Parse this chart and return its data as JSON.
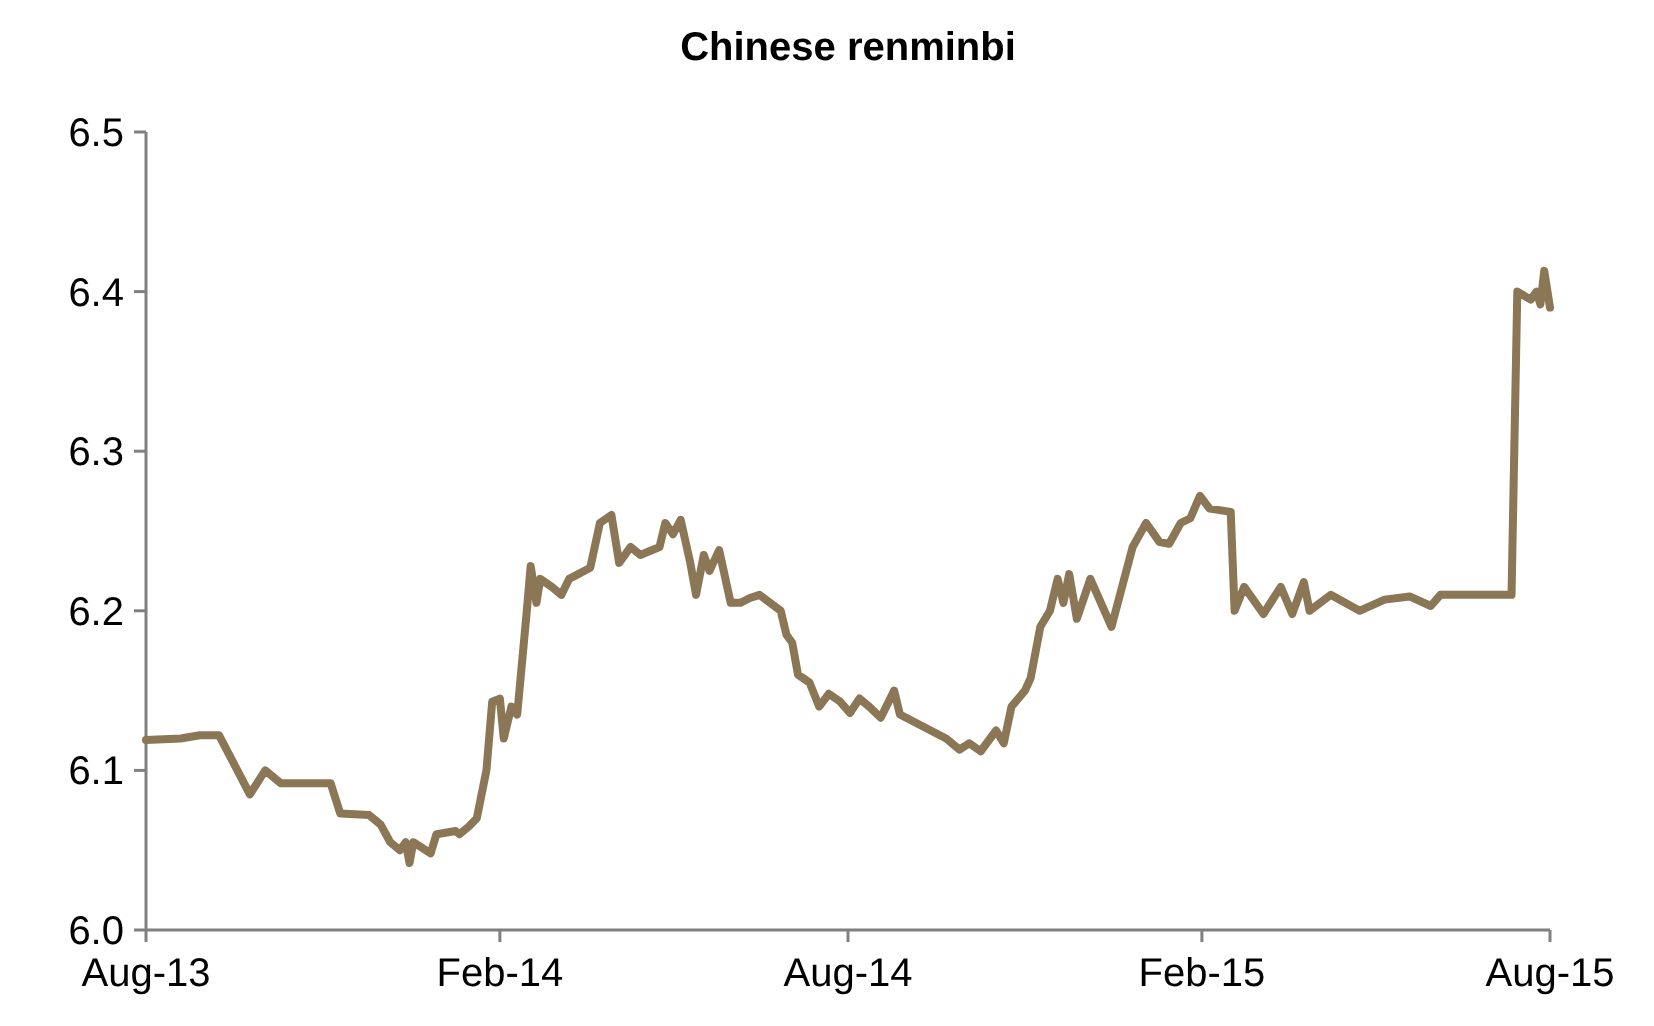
{
  "chart_data": {
    "type": "line",
    "title": "Chinese renminbi",
    "x": [
      "2013-08-01",
      "2013-08-19",
      "2013-08-29",
      "2013-09-08",
      "2013-09-24",
      "2013-10-02",
      "2013-10-10",
      "2013-11-05",
      "2013-11-10",
      "2013-11-25",
      "2013-12-01",
      "2013-12-06",
      "2013-12-11",
      "2013-12-14",
      "2013-12-16",
      "2013-12-18",
      "2013-12-27",
      "2013-12-30",
      "2014-01-09",
      "2014-01-11",
      "2014-01-16",
      "2014-01-20",
      "2014-01-25",
      "2014-01-28",
      "2014-02-01",
      "2014-02-03",
      "2014-02-07",
      "2014-02-10",
      "2014-02-15",
      "2014-02-17",
      "2014-02-20",
      "2014-02-22",
      "2014-02-28",
      "2014-03-05",
      "2014-03-09",
      "2014-03-20",
      "2014-03-25",
      "2014-03-31",
      "2014-04-04",
      "2014-04-10",
      "2014-04-15",
      "2014-04-25",
      "2014-04-28",
      "2014-05-02",
      "2014-05-06",
      "2014-05-11",
      "2014-05-14",
      "2014-05-18",
      "2014-05-21",
      "2014-05-26",
      "2014-06-01",
      "2014-06-06",
      "2014-06-11",
      "2014-06-16",
      "2014-06-27",
      "2014-06-30",
      "2014-07-03",
      "2014-07-06",
      "2014-07-12",
      "2014-07-17",
      "2014-07-22",
      "2014-07-28",
      "2014-08-02",
      "2014-08-07",
      "2014-08-12",
      "2014-08-18",
      "2014-08-25",
      "2014-08-28",
      "2014-09-13",
      "2014-09-21",
      "2014-09-28",
      "2014-10-03",
      "2014-10-09",
      "2014-10-17",
      "2014-10-21",
      "2014-10-25",
      "2014-11-01",
      "2014-11-04",
      "2014-11-09",
      "2014-11-14",
      "2014-11-18",
      "2014-11-21",
      "2014-11-24",
      "2014-11-28",
      "2014-12-05",
      "2014-12-16",
      "2014-12-27",
      "2015-01-03",
      "2015-01-10",
      "2015-01-15",
      "2015-01-21",
      "2015-01-26",
      "2015-01-31",
      "2015-02-05",
      "2015-02-16",
      "2015-02-18",
      "2015-02-23",
      "2015-03-05",
      "2015-03-14",
      "2015-03-20",
      "2015-03-26",
      "2015-03-29",
      "2015-04-09",
      "2015-04-24",
      "2015-05-07",
      "2015-05-20",
      "2015-05-31",
      "2015-06-05",
      "2015-07-12",
      "2015-07-15",
      "2015-07-22",
      "2015-07-25",
      "2015-07-27",
      "2015-07-29",
      "2015-08-01"
    ],
    "series": [
      {
        "color": "#8b7755",
        "values": [
          6.119,
          6.12,
          6.122,
          6.122,
          6.085,
          6.1,
          6.092,
          6.092,
          6.073,
          6.072,
          6.066,
          6.055,
          6.05,
          6.055,
          6.042,
          6.055,
          6.048,
          6.06,
          6.062,
          6.06,
          6.065,
          6.07,
          6.1,
          6.143,
          6.145,
          6.12,
          6.14,
          6.135,
          6.2,
          6.228,
          6.205,
          6.22,
          6.215,
          6.21,
          6.22,
          6.227,
          6.255,
          6.26,
          6.23,
          6.24,
          6.235,
          6.24,
          6.255,
          6.248,
          6.257,
          6.23,
          6.21,
          6.235,
          6.225,
          6.238,
          6.205,
          6.205,
          6.208,
          6.21,
          6.2,
          6.185,
          6.18,
          6.16,
          6.155,
          6.14,
          6.148,
          6.143,
          6.136,
          6.145,
          6.14,
          6.133,
          6.15,
          6.135,
          6.125,
          6.12,
          6.113,
          6.117,
          6.112,
          6.125,
          6.117,
          6.14,
          6.15,
          6.158,
          6.19,
          6.2,
          6.22,
          6.205,
          6.223,
          6.195,
          6.22,
          6.19,
          6.24,
          6.255,
          6.243,
          6.242,
          6.255,
          6.258,
          6.272,
          6.264,
          6.262,
          6.2,
          6.215,
          6.198,
          6.215,
          6.198,
          6.218,
          6.2,
          6.21,
          6.2,
          6.207,
          6.209,
          6.203,
          6.21,
          6.21,
          6.4,
          6.395,
          6.4,
          6.392,
          6.413,
          6.39
        ]
      }
    ],
    "xlim": [
      "2013-08-01",
      "2015-08-01"
    ],
    "xticks": [
      {
        "value": "2013-08-01",
        "label": "Aug-13"
      },
      {
        "value": "2014-02-01",
        "label": "Feb-14"
      },
      {
        "value": "2014-08-01",
        "label": "Aug-14"
      },
      {
        "value": "2015-02-01",
        "label": "Feb-15"
      },
      {
        "value": "2015-08-01",
        "label": "Aug-15"
      }
    ],
    "ylim": [
      6.0,
      6.5
    ],
    "yticks": [
      {
        "value": 6.0,
        "label": "6.0"
      },
      {
        "value": 6.1,
        "label": "6.1"
      },
      {
        "value": 6.2,
        "label": "6.2"
      },
      {
        "value": 6.3,
        "label": "6.3"
      },
      {
        "value": 6.4,
        "label": "6.4"
      },
      {
        "value": 6.5,
        "label": "6.5"
      }
    ],
    "grid": false
  }
}
